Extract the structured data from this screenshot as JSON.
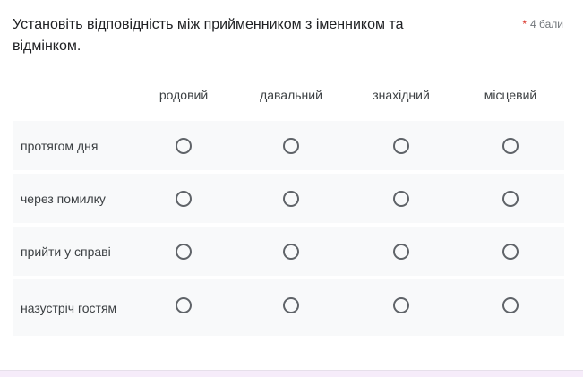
{
  "question": {
    "title": "Установіть відповідність між прийменником з іменником та відмінком.",
    "required_mark": "*",
    "points": "4 бали"
  },
  "columns": [
    "родовий",
    "давальний",
    "знахідний",
    "місцевий"
  ],
  "rows": [
    "протягом дня",
    "через помилку",
    "прийти у справі",
    "назустріч гостям"
  ],
  "colors": {
    "row_bg": "#f8f9fa",
    "required": "#d93025",
    "radio_border": "#5f6368"
  }
}
